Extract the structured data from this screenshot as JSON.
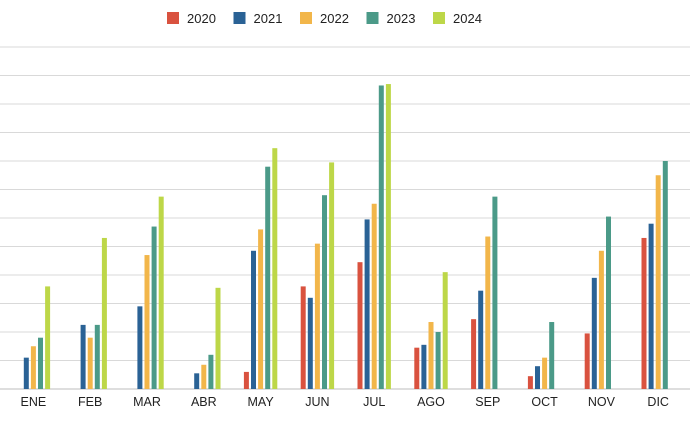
{
  "chart_data": {
    "type": "bar",
    "title": "",
    "xlabel": "",
    "ylabel": "",
    "ylim": [
      0,
      12
    ],
    "grid": true,
    "legend_position": "top-center",
    "categories": [
      "ENE",
      "FEB",
      "MAR",
      "ABR",
      "MAY",
      "JUN",
      "JUL",
      "AGO",
      "SEP",
      "OCT",
      "NOV",
      "DIC"
    ],
    "series": [
      {
        "name": "2020",
        "color": "#d9523f",
        "values": [
          0,
          0,
          0,
          0,
          0.6,
          3.6,
          4.45,
          1.45,
          2.45,
          0.45,
          1.95,
          5.3
        ]
      },
      {
        "name": "2021",
        "color": "#2a6295",
        "values": [
          1.1,
          2.25,
          2.9,
          0.55,
          4.85,
          3.2,
          5.95,
          1.55,
          3.45,
          0.8,
          3.9,
          5.8
        ]
      },
      {
        "name": "2022",
        "color": "#f2b64a",
        "values": [
          1.5,
          1.8,
          4.7,
          0.85,
          5.6,
          5.1,
          6.5,
          2.35,
          5.35,
          1.1,
          4.85,
          7.5
        ]
      },
      {
        "name": "2023",
        "color": "#4b9a88",
        "values": [
          1.8,
          2.25,
          5.7,
          1.2,
          7.8,
          6.8,
          10.65,
          2.0,
          6.75,
          2.35,
          6.05,
          8.0
        ]
      },
      {
        "name": "2024",
        "color": "#bdd748",
        "values": [
          3.6,
          5.3,
          6.75,
          3.55,
          8.45,
          7.95,
          10.7,
          4.1,
          null,
          null,
          null,
          null
        ]
      }
    ]
  }
}
